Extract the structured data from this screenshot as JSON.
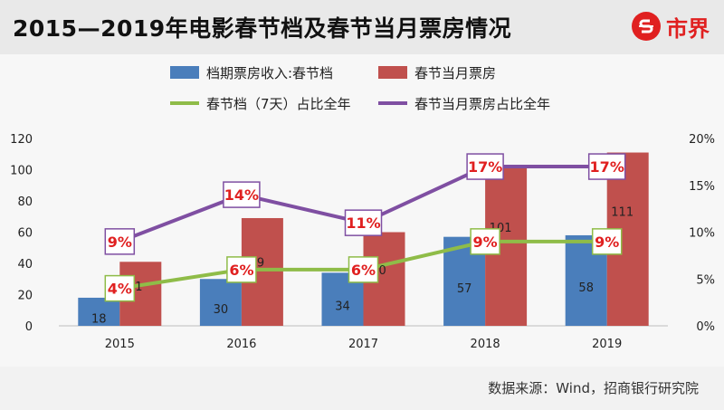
{
  "title": "2015—2019年电影春节档及春节当月票房情况",
  "logo": {
    "text": "市界",
    "icon": "s-logo-icon"
  },
  "source": "数据来源：Wind，招商银行研究院",
  "colors": {
    "bar1": "#4a7ebb",
    "bar2": "#c0504d",
    "line1": "#8fbc48",
    "line2": "#7f4fa2",
    "pctText": "#e02020"
  },
  "chart_data": {
    "type": "bar",
    "categories": [
      "2015",
      "2016",
      "2017",
      "2018",
      "2019"
    ],
    "series": [
      {
        "name": "档期票房收入:春节档",
        "type": "bar",
        "axis": "left",
        "values": [
          18,
          30,
          34,
          57,
          58
        ]
      },
      {
        "name": "春节当月票房",
        "type": "bar",
        "axis": "left",
        "values": [
          41,
          69,
          60,
          101,
          111
        ]
      },
      {
        "name": "春节档（7天）占比全年",
        "type": "line",
        "axis": "right",
        "values": [
          4,
          6,
          6,
          9,
          9
        ],
        "labels": [
          "4%",
          "6%",
          "6%",
          "9%",
          "9%"
        ]
      },
      {
        "name": "春节当月票房占比全年",
        "type": "line",
        "axis": "right",
        "values": [
          9,
          14,
          11,
          17,
          17
        ],
        "labels": [
          "9%",
          "14%",
          "11%",
          "17%",
          "17%"
        ]
      }
    ],
    "yticks_left": [
      "0",
      "20",
      "40",
      "60",
      "80",
      "100",
      "120"
    ],
    "yticks_right": [
      "0%",
      "5%",
      "10%",
      "15%",
      "20%"
    ],
    "ylim_left": [
      0,
      120
    ],
    "ylim_right": [
      0,
      20
    ],
    "legend_position": "top"
  }
}
